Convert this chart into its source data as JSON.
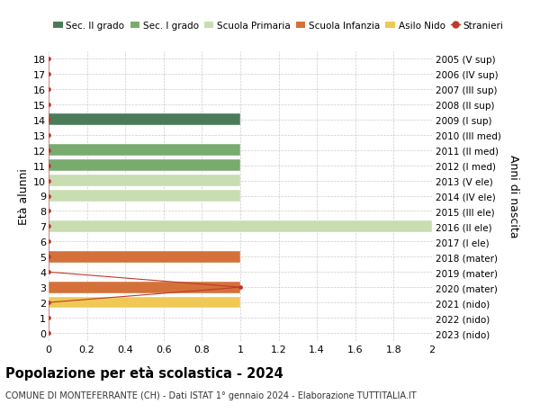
{
  "title": "Popolazione per età scolastica - 2024",
  "subtitle": "COMUNE DI MONTEFERRANTE (CH) - Dati ISTAT 1° gennaio 2024 - Elaborazione TUTTITALIA.IT",
  "ylabel_left": "Età alunni",
  "ylabel_right": "Anni di nascita",
  "xlim": [
    0,
    2.0
  ],
  "xticks": [
    0,
    0.2,
    0.4,
    0.6,
    0.8,
    1.0,
    1.2,
    1.4,
    1.6,
    1.8,
    2.0
  ],
  "ages": [
    18,
    17,
    16,
    15,
    14,
    13,
    12,
    11,
    10,
    9,
    8,
    7,
    6,
    5,
    4,
    3,
    2,
    1,
    0
  ],
  "right_labels": [
    "2005 (V sup)",
    "2006 (IV sup)",
    "2007 (III sup)",
    "2008 (II sup)",
    "2009 (I sup)",
    "2010 (III med)",
    "2011 (II med)",
    "2012 (I med)",
    "2013 (V ele)",
    "2014 (IV ele)",
    "2015 (III ele)",
    "2016 (II ele)",
    "2017 (I ele)",
    "2018 (mater)",
    "2019 (mater)",
    "2020 (mater)",
    "2021 (nido)",
    "2022 (nido)",
    "2023 (nido)"
  ],
  "bars": [
    {
      "age": 14,
      "value": 1.0,
      "color": "#4a7c59"
    },
    {
      "age": 12,
      "value": 1.0,
      "color": "#7aab6e"
    },
    {
      "age": 11,
      "value": 1.0,
      "color": "#7aab6e"
    },
    {
      "age": 10,
      "value": 1.0,
      "color": "#c8ddb0"
    },
    {
      "age": 9,
      "value": 1.0,
      "color": "#c8ddb0"
    },
    {
      "age": 7,
      "value": 2.0,
      "color": "#c8ddb0"
    },
    {
      "age": 5,
      "value": 1.0,
      "color": "#d4713a"
    },
    {
      "age": 3,
      "value": 1.0,
      "color": "#d4713a"
    },
    {
      "age": 2,
      "value": 1.0,
      "color": "#f0c855"
    }
  ],
  "stranieri_ages": [
    18,
    17,
    16,
    15,
    14,
    13,
    12,
    11,
    10,
    9,
    8,
    7,
    6,
    5,
    4,
    3,
    2,
    1,
    0
  ],
  "stranieri_vals": [
    0,
    0,
    0,
    0,
    0,
    0,
    0,
    0,
    0,
    0,
    0,
    0,
    0,
    0,
    0,
    1.0,
    0,
    0,
    0
  ],
  "stranieri_color": "#c0392b",
  "grid_color": "#cccccc",
  "bg_color": "#ffffff",
  "bar_height": 0.75,
  "legend_items": [
    {
      "label": "Sec. II grado",
      "color": "#4a7c59",
      "type": "bar"
    },
    {
      "label": "Sec. I grado",
      "color": "#7aab6e",
      "type": "bar"
    },
    {
      "label": "Scuola Primaria",
      "color": "#c8ddb0",
      "type": "bar"
    },
    {
      "label": "Scuola Infanzia",
      "color": "#d4713a",
      "type": "bar"
    },
    {
      "label": "Asilo Nido",
      "color": "#f0c855",
      "type": "bar"
    },
    {
      "label": "Stranieri",
      "color": "#c0392b",
      "type": "line"
    }
  ]
}
